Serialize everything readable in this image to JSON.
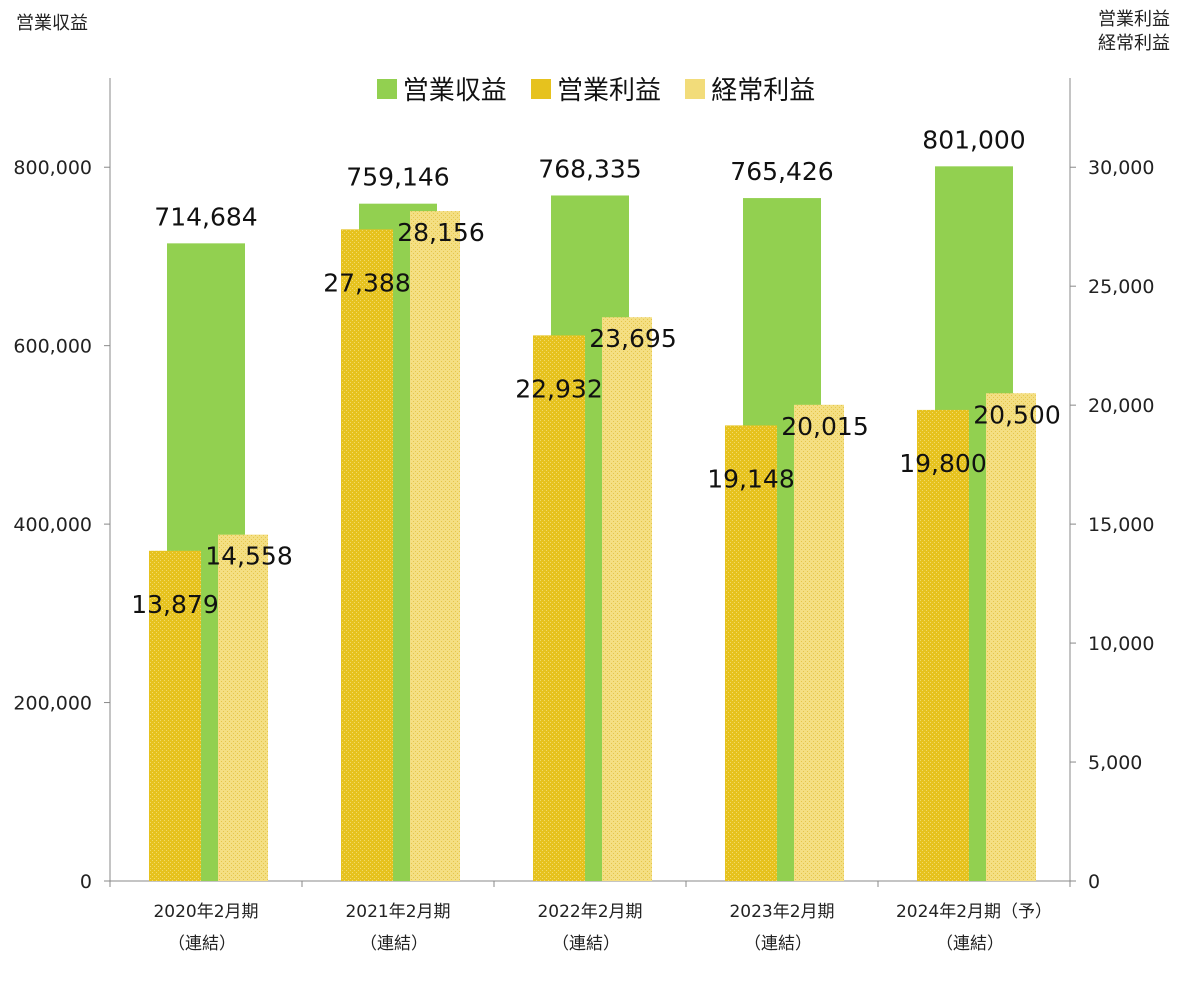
{
  "chart_data": {
    "type": "bar",
    "categories": [
      [
        "2020年2月期",
        "（連結）"
      ],
      [
        "2021年2月期",
        "（連結）"
      ],
      [
        "2022年2月期",
        "（連結）"
      ],
      [
        "2023年2月期",
        "（連結）"
      ],
      [
        "2024年2月期（予）",
        "（連結）"
      ]
    ],
    "series": [
      {
        "name": "営業収益",
        "axis": "left",
        "color": "#92d050",
        "values": [
          714684,
          759146,
          768335,
          765426,
          801000
        ],
        "labels": [
          "714,684",
          "759,146",
          "768,335",
          "765,426",
          "801,000"
        ]
      },
      {
        "name": "営業利益",
        "axis": "right",
        "color": "#e6c21e",
        "values": [
          13879,
          27388,
          22932,
          19148,
          19800
        ],
        "labels": [
          "13,879",
          "27,388",
          "22,932",
          "19,148",
          "19,800"
        ]
      },
      {
        "name": "経常利益",
        "axis": "right",
        "color": "#f2dc7a",
        "values": [
          14558,
          28156,
          23695,
          20015,
          20500
        ],
        "labels": [
          "14,558",
          "28,156",
          "23,695",
          "20,015",
          "20,500"
        ]
      }
    ],
    "y_left": {
      "title": "営業収益",
      "ylim": [
        0,
        900000
      ],
      "ticks": [
        0,
        200000,
        400000,
        600000,
        800000
      ],
      "tick_labels": [
        "0",
        "200,000",
        "400,000",
        "600,000",
        "800,000"
      ]
    },
    "y_right": {
      "title_lines": [
        "営業利益",
        "経常利益"
      ],
      "ylim": [
        0,
        33750
      ],
      "ticks": [
        0,
        5000,
        10000,
        15000,
        20000,
        25000,
        30000
      ],
      "tick_labels": [
        "0",
        "5,000",
        "10,000",
        "15,000",
        "20,000",
        "25,000",
        "30,000"
      ]
    },
    "legend": {
      "position": "top-center"
    },
    "grid": false
  }
}
